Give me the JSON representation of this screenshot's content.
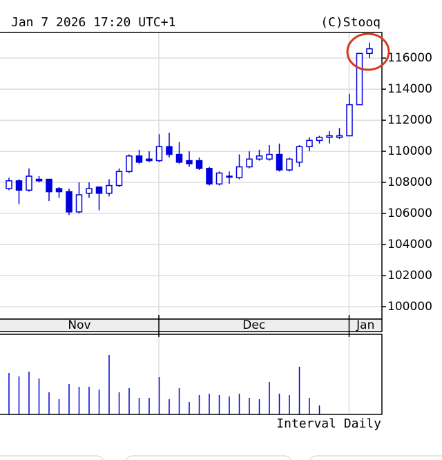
{
  "chart_data": {
    "type": "candlestick",
    "timestamp": "Jan 7 2026 17:20 UTC+1",
    "source": "(C)Stooq",
    "interval_label": "Interval Daily",
    "months": [
      "Nov",
      "Dec",
      "Jan"
    ],
    "color": "#0000dd",
    "ylim": [
      99200,
      117650
    ],
    "yticks": [
      100000,
      102000,
      104000,
      106000,
      108000,
      110000,
      112000,
      114000,
      116000
    ],
    "grid": true,
    "open": [
      107600,
      108100,
      107500,
      108200,
      108200,
      107600,
      107400,
      106100,
      107300,
      107700,
      107300,
      107800,
      108700,
      109700,
      109500,
      109400,
      110300,
      109800,
      109400,
      109400,
      108900,
      107900,
      108400,
      108300,
      109000,
      109500,
      109500,
      109800,
      108800,
      109300,
      110300,
      110700,
      110900,
      110900,
      111000,
      113000,
      116300
    ],
    "close": [
      108100,
      107500,
      108400,
      108100,
      107400,
      107400,
      106100,
      107200,
      107600,
      107300,
      107800,
      108700,
      109700,
      109300,
      109400,
      110300,
      109800,
      109300,
      109200,
      108900,
      107900,
      108600,
      108400,
      109000,
      109500,
      109700,
      109800,
      108800,
      109500,
      110300,
      110700,
      110900,
      111000,
      111000,
      113000,
      116300,
      116600
    ],
    "high": [
      108300,
      108200,
      108900,
      108400,
      108200,
      107700,
      107600,
      108000,
      108000,
      107700,
      108200,
      108900,
      109800,
      110100,
      110000,
      111100,
      111200,
      110600,
      110000,
      109600,
      109000,
      108700,
      108700,
      109800,
      110000,
      110100,
      110400,
      110500,
      109600,
      110400,
      110900,
      111000,
      111300,
      111500,
      113700,
      116300,
      117000
    ],
    "low": [
      107500,
      106600,
      107400,
      108000,
      106800,
      107000,
      105900,
      106000,
      107000,
      106200,
      107100,
      107700,
      108600,
      109200,
      109300,
      109300,
      109600,
      109200,
      109000,
      108800,
      107800,
      107800,
      107900,
      108200,
      108900,
      109400,
      109400,
      108700,
      108700,
      109000,
      110000,
      110500,
      110500,
      110800,
      111000,
      113000,
      116000
    ],
    "volume": [
      60,
      55,
      62,
      52,
      32,
      22,
      44,
      40,
      40,
      36,
      86,
      32,
      38,
      24,
      24,
      54,
      22,
      38,
      18,
      28,
      30,
      28,
      26,
      30,
      24,
      22,
      47,
      30,
      28,
      69,
      24,
      13,
      null,
      null,
      null,
      null,
      null
    ]
  }
}
